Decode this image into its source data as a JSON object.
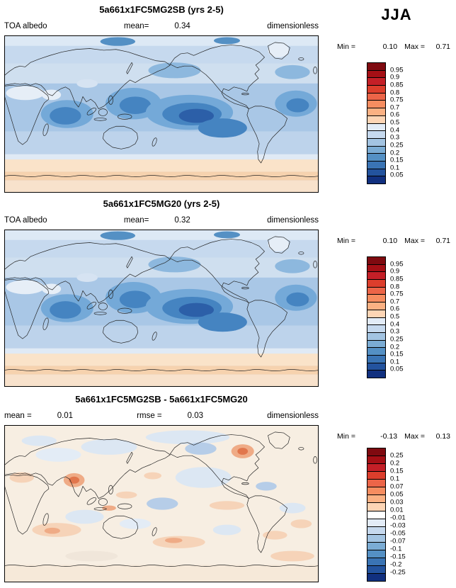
{
  "season_label": "JJA",
  "chart_data": [
    {
      "type": "heatmap",
      "panel": 1,
      "title": "5a661x1FC5MG2SB (yrs 2-5)",
      "variable": "TOA albedo",
      "units": "dimensionless",
      "mean_label": "mean=",
      "mean": "0.34",
      "min_label": "Min =",
      "min": "0.10",
      "max_label": "Max =",
      "max": "0.71",
      "projection": "global latitude-longitude, Greenwich meridian at left edge, legend at right",
      "contour_levels": [
        0.05,
        0.1,
        0.15,
        0.2,
        0.25,
        0.3,
        0.4,
        0.5,
        0.6,
        0.7,
        0.75,
        0.8,
        0.85,
        0.9,
        0.95
      ],
      "colorbar_tick_labels": [
        "0.95",
        "0.9",
        "0.85",
        "0.8",
        "0.75",
        "0.7",
        "0.6",
        "0.5",
        "0.4",
        "0.3",
        "0.25",
        "0.2",
        "0.15",
        "0.1",
        "0.05"
      ],
      "colorbar_colors": [
        "#7f0a10",
        "#a50f15",
        "#c41f27",
        "#dc3e2c",
        "#ec6548",
        "#f68d60",
        "#fbb183",
        "#fdd5b5",
        "#e3ecf7",
        "#c6d9ee",
        "#a3c4e2",
        "#7bacd4",
        "#5490c4",
        "#3a74b4",
        "#23539e",
        "#11307f"
      ]
    },
    {
      "type": "heatmap",
      "panel": 2,
      "title": "5a661x1FC5MG20 (yrs 2-5)",
      "variable": "TOA albedo",
      "units": "dimensionless",
      "mean_label": "mean=",
      "mean": "0.32",
      "min_label": "Min =",
      "min": "0.10",
      "max_label": "Max =",
      "max": "0.71",
      "projection": "global latitude-longitude, Greenwich meridian at left edge, legend at right",
      "contour_levels": [
        0.05,
        0.1,
        0.15,
        0.2,
        0.25,
        0.3,
        0.4,
        0.5,
        0.6,
        0.7,
        0.75,
        0.8,
        0.85,
        0.9,
        0.95
      ],
      "colorbar_tick_labels": [
        "0.95",
        "0.9",
        "0.85",
        "0.8",
        "0.75",
        "0.7",
        "0.6",
        "0.5",
        "0.4",
        "0.3",
        "0.25",
        "0.2",
        "0.15",
        "0.1",
        "0.05"
      ],
      "colorbar_colors": [
        "#7f0a10",
        "#a50f15",
        "#c41f27",
        "#dc3e2c",
        "#ec6548",
        "#f68d60",
        "#fbb183",
        "#fdd5b5",
        "#e3ecf7",
        "#c6d9ee",
        "#a3c4e2",
        "#7bacd4",
        "#5490c4",
        "#3a74b4",
        "#23539e",
        "#11307f"
      ]
    },
    {
      "type": "heatmap",
      "panel": 3,
      "title": "5a661x1FC5MG2SB - 5a661x1FC5MG20",
      "units": "dimensionless",
      "mean_label": "mean =",
      "mean": "0.01",
      "rmse_label": "rmse =",
      "rmse": "0.03",
      "min_label": "Min =",
      "min": "-0.13",
      "max_label": "Max =",
      "max": "0.13",
      "projection": "global latitude-longitude difference map, legend at right",
      "contour_levels": [
        -0.25,
        -0.2,
        -0.15,
        -0.1,
        -0.07,
        -0.05,
        -0.03,
        -0.01,
        0.01,
        0.03,
        0.05,
        0.07,
        0.1,
        0.15,
        0.2,
        0.25
      ],
      "colorbar_tick_labels": [
        "0.25",
        "0.2",
        "0.15",
        "0.1",
        "0.07",
        "0.05",
        "0.03",
        "0.01",
        "-0.01",
        "-0.03",
        "-0.05",
        "-0.07",
        "-0.1",
        "-0.15",
        "-0.2",
        "-0.25"
      ],
      "colorbar_colors": [
        "#7f0a10",
        "#a50f15",
        "#c41f27",
        "#dc3e2c",
        "#ec6548",
        "#f68d60",
        "#fbb183",
        "#fdd5b5",
        "#ffffff",
        "#e3ecf7",
        "#c6d9ee",
        "#a3c4e2",
        "#7bacd4",
        "#5490c4",
        "#3a74b4",
        "#23539e",
        "#11307f"
      ]
    }
  ]
}
